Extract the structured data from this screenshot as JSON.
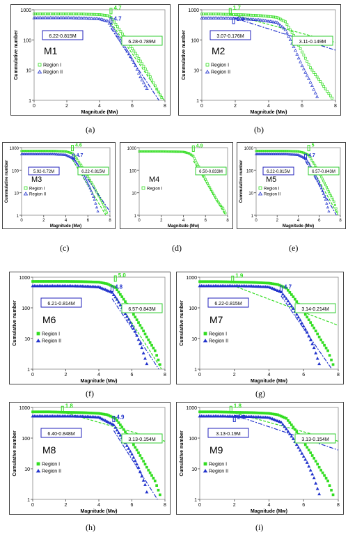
{
  "colors": {
    "region1": "#33dd22",
    "region2": "#2233cc",
    "boxBlue": "#2222bb",
    "boxGreen": "#33cc33"
  },
  "charts": [
    {
      "model": "M1",
      "caption": "(a)",
      "ylabel": "Cummulative number",
      "xlabel": "Magnitude (Mw)",
      "x_ticks": [
        "0",
        "2",
        "4",
        "6",
        "8"
      ],
      "y_ticks": [
        "1",
        "10",
        "100",
        "1000"
      ],
      "legend": [
        "Region I",
        "Region II"
      ],
      "box_blue": "6.22-0.815M",
      "box_green": "6.28-0.789M",
      "annot_green": "4.7",
      "annot_blue": "4.7",
      "mc_green": null,
      "mc_blue": null
    },
    {
      "model": "M2",
      "caption": "(b)",
      "ylabel": "Cummulative number",
      "xlabel": "Magnitude (Mw)",
      "x_ticks": [
        "0",
        "2",
        "4",
        "6",
        "8"
      ],
      "y_ticks": [
        "1",
        "10",
        "100",
        "1000"
      ],
      "legend": [
        "Region I",
        "Region II"
      ],
      "box_blue": "3.07-0.176M",
      "box_green": "3.11-0.149M",
      "annot_green": "1.7",
      "annot_blue": "1.9",
      "mc_green": null,
      "mc_blue": null
    },
    {
      "model": "M3",
      "caption": "(c)",
      "ylabel": "Cummulative number",
      "xlabel": "Magnitude (Mw)",
      "x_ticks": [
        "0",
        "2",
        "4",
        "6",
        "8"
      ],
      "y_ticks": [
        "1",
        "10",
        "100",
        "1000"
      ],
      "legend": [
        "Region I",
        "Region II"
      ],
      "box_blue": "5.92-0.72M",
      "box_green": "6.22-0.815M",
      "annot_green": "4.6",
      "annot_blue": "4.7",
      "mc_green": null,
      "mc_blue": null
    },
    {
      "model": "M4",
      "caption": "(d)",
      "ylabel": "",
      "xlabel": "Magnitude (Mw)",
      "x_ticks": [
        "0",
        "2",
        "4",
        "6",
        "8"
      ],
      "y_ticks": [
        "1",
        "10",
        "100",
        "1000"
      ],
      "legend": [
        "Region I"
      ],
      "box_blue": "",
      "box_green": "6.50-0.833M",
      "annot_green": "4.9",
      "annot_blue": "",
      "mc_green": null,
      "mc_blue": null
    },
    {
      "model": "M5",
      "caption": "(e)",
      "ylabel": "Cummulative number",
      "xlabel": "Magnitude (Mw)",
      "x_ticks": [
        "0",
        "2",
        "4",
        "6",
        "8"
      ],
      "y_ticks": [
        "1",
        "10",
        "100",
        "1000"
      ],
      "legend": [
        "Region I",
        "Region II"
      ],
      "box_blue": "6.22-0.815M",
      "box_green": "6.57-0.843M",
      "annot_green": "5",
      "annot_blue": "4.7",
      "mc_green": null,
      "mc_blue": null
    },
    {
      "model": "M6",
      "caption": "(f)",
      "ylabel": "Cumulative number",
      "xlabel": "Magnitude (Mw)",
      "x_ticks": [
        "0",
        "2",
        "4",
        "6",
        "8"
      ],
      "y_ticks": [
        "1",
        "10",
        "100",
        "1000"
      ],
      "legend": [
        "Region I",
        "Region II"
      ],
      "box_blue": "6.21-0.814M",
      "box_green": "6.57-0.843M",
      "annot_green": "5.0",
      "annot_blue": "4.8",
      "mc_green": null,
      "mc_blue": null
    },
    {
      "model": "M7",
      "caption": "(g)",
      "ylabel": "Cumulative number",
      "xlabel": "Magnitude (Mw)",
      "x_ticks": [
        "0",
        "2",
        "4",
        "6",
        "8"
      ],
      "y_ticks": [
        "1",
        "10",
        "100",
        "1000"
      ],
      "legend": [
        "Region I",
        "Region II"
      ],
      "box_blue": "6.22-0.815M",
      "box_green": "3.14-0.214M",
      "annot_green": "1.9",
      "annot_blue": "4.7",
      "mc_green": null,
      "mc_blue": null
    },
    {
      "model": "M8",
      "caption": "(h)",
      "ylabel": "Cumulative number",
      "xlabel": "Magnitude (Mw)",
      "x_ticks": [
        "0",
        "2",
        "4",
        "6",
        "8"
      ],
      "y_ticks": [
        "1",
        "10",
        "100",
        "1000"
      ],
      "legend": [
        "Region I",
        "Region II"
      ],
      "box_blue": "6.40-0.848M",
      "box_green": "3.13-0.154M",
      "annot_green": "1.8",
      "annot_blue": "4.9",
      "mc_green": null,
      "mc_blue": null
    },
    {
      "model": "M9",
      "caption": "(i)",
      "ylabel": "Cumulative number",
      "xlabel": "Magnitude (Mw)",
      "x_ticks": [
        "0",
        "2",
        "4",
        "6",
        "8"
      ],
      "y_ticks": [
        "1",
        "10",
        "100",
        "1000"
      ],
      "legend": [
        "Region I",
        "Region II"
      ],
      "box_blue": "3.13-0.19M",
      "box_green": "3.13-0.154M",
      "annot_green": "1.8",
      "annot_blue": "2.0",
      "mc_green": null,
      "mc_blue": null
    }
  ],
  "chart_data": [
    {
      "type": "scatter",
      "panel": "M1",
      "xlabel": "Magnitude (Mw)",
      "ylabel": "Cummulative number",
      "xlim": [
        0,
        8
      ],
      "ylim": [
        1,
        1000
      ],
      "ylog": true,
      "series": [
        {
          "name": "Region I",
          "fit": "6.28-0.789M",
          "mc": 4.7,
          "marker": "square-open",
          "x": [
            0,
            1,
            2,
            3,
            4,
            4.5,
            4.7,
            5.0,
            5.3,
            5.6,
            5.9,
            6.2,
            6.5,
            6.8,
            7.1,
            7.4,
            7.7,
            7.9
          ],
          "y": [
            730,
            730,
            730,
            720,
            690,
            640,
            560,
            330,
            190,
            110,
            60,
            36,
            20,
            11,
            6,
            3,
            1.5,
            1
          ]
        },
        {
          "name": "Region II",
          "fit": "6.22-0.815M",
          "mc": 4.7,
          "marker": "triangle-open",
          "x": [
            0,
            1,
            2,
            3,
            4,
            4.5,
            4.7,
            5.0,
            5.3,
            5.6,
            5.9,
            6.2,
            6.5,
            6.8,
            7.0
          ],
          "y": [
            540,
            540,
            540,
            530,
            500,
            420,
            300,
            170,
            95,
            52,
            28,
            14,
            6,
            3,
            2
          ]
        }
      ]
    },
    {
      "type": "scatter",
      "panel": "M2",
      "xlabel": "Magnitude (Mw)",
      "ylabel": "Cummulative number",
      "xlim": [
        0,
        8
      ],
      "ylim": [
        1,
        1000
      ],
      "ylog": true,
      "series": [
        {
          "name": "Region I",
          "fit": "3.11-0.149M",
          "mc": 1.7,
          "marker": "square-open",
          "x": [
            0,
            1,
            1.7,
            2.5,
            3.5,
            4.5,
            5.0,
            5.5,
            6.0,
            6.5,
            7.0,
            7.5,
            7.9
          ],
          "y": [
            720,
            720,
            700,
            680,
            640,
            560,
            400,
            140,
            40,
            12,
            5,
            2,
            1
          ]
        },
        {
          "name": "Region II",
          "fit": "3.07-0.176M",
          "mc": 1.9,
          "marker": "triangle-open",
          "x": [
            0,
            1,
            1.9,
            2.5,
            3.5,
            4.5,
            5.0,
            5.5,
            6.0,
            6.5,
            7.0
          ],
          "y": [
            530,
            530,
            520,
            500,
            460,
            380,
            220,
            60,
            14,
            4,
            1
          ]
        }
      ]
    },
    {
      "type": "scatter",
      "panel": "M3",
      "xlabel": "Magnitude (Mw)",
      "ylabel": "Cummulative number",
      "xlim": [
        0,
        8
      ],
      "ylim": [
        1,
        1000
      ],
      "ylog": true,
      "series": [
        {
          "name": "Region I",
          "fit": "6.22-0.815M",
          "mc": 4.6,
          "marker": "square-open",
          "x": [
            0,
            1,
            2,
            3,
            4,
            4.6,
            5.0,
            5.4,
            5.8,
            6.2,
            6.6,
            7.0,
            7.4,
            7.8
          ],
          "y": [
            720,
            720,
            720,
            710,
            680,
            560,
            320,
            160,
            75,
            36,
            16,
            7,
            3,
            1
          ]
        },
        {
          "name": "Region II",
          "fit": "5.92-0.72M",
          "mc": 4.7,
          "marker": "triangle-open",
          "x": [
            0,
            1,
            2,
            3,
            4,
            4.7,
            5.0,
            5.4,
            5.8,
            6.2,
            6.6,
            7.0
          ],
          "y": [
            520,
            520,
            520,
            510,
            480,
            330,
            200,
            95,
            40,
            16,
            5,
            1
          ]
        }
      ]
    },
    {
      "type": "scatter",
      "panel": "M4",
      "xlabel": "Magnitude (Mw)",
      "ylabel": "",
      "xlim": [
        0,
        8
      ],
      "ylim": [
        1,
        1000
      ],
      "ylog": true,
      "series": [
        {
          "name": "Region I",
          "fit": "6.50-0.833M",
          "mc": 4.9,
          "marker": "square-open",
          "x": [
            0,
            1,
            2,
            3,
            4,
            4.5,
            4.9,
            5.2,
            5.5,
            5.8,
            6.1,
            6.4,
            6.7,
            7.0,
            7.3,
            7.6,
            7.9
          ],
          "y": [
            680,
            680,
            680,
            670,
            650,
            560,
            420,
            210,
            120,
            62,
            32,
            17,
            9,
            5,
            3,
            2,
            1
          ]
        }
      ]
    },
    {
      "type": "scatter",
      "panel": "M5",
      "xlabel": "Magnitude (Mw)",
      "ylabel": "Cummulative number",
      "xlim": [
        0,
        8
      ],
      "ylim": [
        1,
        1000
      ],
      "ylog": true,
      "series": [
        {
          "name": "Region I",
          "fit": "6.57-0.843M",
          "mc": 5.0,
          "marker": "square-open",
          "x": [
            0,
            1,
            2,
            3,
            4,
            4.5,
            5.0,
            5.4,
            5.8,
            6.2,
            6.6,
            7.0,
            7.4,
            7.8
          ],
          "y": [
            720,
            720,
            720,
            710,
            680,
            600,
            460,
            230,
            110,
            50,
            22,
            9,
            4,
            1
          ]
        },
        {
          "name": "Region II",
          "fit": "6.22-0.815M",
          "mc": 4.7,
          "marker": "triangle-open",
          "x": [
            0,
            1,
            2,
            3,
            4,
            4.7,
            5.0,
            5.4,
            5.8,
            6.2,
            6.6,
            7.0
          ],
          "y": [
            520,
            520,
            520,
            510,
            480,
            330,
            200,
            95,
            40,
            16,
            5,
            1
          ]
        }
      ]
    },
    {
      "type": "scatter",
      "panel": "M6",
      "xlabel": "Magnitude (Mw)",
      "ylabel": "Cumulative number",
      "xlim": [
        0,
        8
      ],
      "ylim": [
        1,
        1000
      ],
      "ylog": true,
      "series": [
        {
          "name": "Region I",
          "fit": "6.57-0.843M",
          "mc": 5.0,
          "marker": "square-filled",
          "x": [
            0,
            1,
            2,
            3,
            4,
            4.5,
            5.0,
            5.4,
            5.8,
            6.2,
            6.6,
            7.0,
            7.4,
            7.8
          ],
          "y": [
            730,
            730,
            730,
            720,
            690,
            610,
            460,
            230,
            110,
            50,
            22,
            9,
            4,
            1
          ]
        },
        {
          "name": "Region II",
          "fit": "6.21-0.814M",
          "mc": 4.8,
          "marker": "triangle-filled",
          "x": [
            0,
            1,
            2,
            3,
            4,
            4.8,
            5.1,
            5.4,
            5.8,
            6.2,
            6.6,
            7.0
          ],
          "y": [
            520,
            520,
            520,
            510,
            480,
            320,
            190,
            100,
            42,
            17,
            5,
            1
          ]
        }
      ]
    },
    {
      "type": "scatter",
      "panel": "M7",
      "xlabel": "Magnitude (Mw)",
      "ylabel": "Cumulative number",
      "xlim": [
        0,
        8
      ],
      "ylim": [
        1,
        1000
      ],
      "ylog": true,
      "series": [
        {
          "name": "Region I",
          "fit": "3.14-0.214M",
          "mc": 1.9,
          "marker": "square-filled",
          "x": [
            0,
            1,
            1.9,
            3,
            4,
            4.5,
            5.0,
            5.4,
            5.8,
            6.2,
            6.6,
            7.0,
            7.4,
            7.8
          ],
          "y": [
            720,
            720,
            700,
            680,
            640,
            580,
            440,
            230,
            110,
            50,
            22,
            9,
            4,
            1
          ]
        },
        {
          "name": "Region II",
          "fit": "6.22-0.815M",
          "mc": 4.7,
          "marker": "triangle-filled",
          "x": [
            0,
            1,
            2,
            3,
            4,
            4.7,
            5.0,
            5.4,
            5.8,
            6.2,
            6.6,
            7.0
          ],
          "y": [
            520,
            520,
            520,
            510,
            480,
            330,
            200,
            95,
            40,
            16,
            5,
            1
          ]
        }
      ]
    },
    {
      "type": "scatter",
      "panel": "M8",
      "xlabel": "Magnitude (Mw)",
      "ylabel": "Cumulative number",
      "xlim": [
        0,
        8
      ],
      "ylim": [
        1,
        1000
      ],
      "ylog": true,
      "series": [
        {
          "name": "Region I",
          "fit": "3.13-0.154M",
          "mc": 1.8,
          "marker": "square-filled",
          "x": [
            0,
            1,
            1.8,
            3,
            4,
            4.5,
            5.0,
            5.4,
            5.8,
            6.2,
            6.6,
            7.0,
            7.4,
            7.8
          ],
          "y": [
            720,
            720,
            700,
            680,
            640,
            580,
            440,
            230,
            110,
            50,
            22,
            9,
            4,
            1
          ]
        },
        {
          "name": "Region II",
          "fit": "6.40-0.848M",
          "mc": 4.9,
          "marker": "triangle-filled",
          "x": [
            0,
            1,
            2,
            3,
            4,
            4.9,
            5.2,
            5.6,
            6.0,
            6.4,
            6.8,
            7.0
          ],
          "y": [
            520,
            520,
            520,
            510,
            480,
            270,
            150,
            70,
            30,
            11,
            3,
            1
          ]
        }
      ]
    },
    {
      "type": "scatter",
      "panel": "M9",
      "xlabel": "Magnitude (Mw)",
      "ylabel": "Cumulative number",
      "xlim": [
        0,
        8
      ],
      "ylim": [
        1,
        1000
      ],
      "ylog": true,
      "series": [
        {
          "name": "Region I",
          "fit": "3.13-0.154M",
          "mc": 1.8,
          "marker": "square-filled",
          "x": [
            0,
            1,
            1.8,
            3,
            4,
            4.5,
            5.0,
            5.4,
            5.8,
            6.2,
            6.6,
            7.0,
            7.4,
            7.8
          ],
          "y": [
            720,
            720,
            700,
            680,
            640,
            580,
            440,
            230,
            110,
            50,
            22,
            9,
            4,
            1
          ]
        },
        {
          "name": "Region II",
          "fit": "3.13-0.19M",
          "mc": 2.0,
          "marker": "triangle-filled",
          "x": [
            0,
            1,
            2.0,
            3,
            4,
            4.7,
            5.0,
            5.4,
            5.8,
            6.2,
            6.6,
            7.0
          ],
          "y": [
            520,
            520,
            510,
            500,
            470,
            330,
            200,
            95,
            40,
            16,
            5,
            1
          ]
        }
      ]
    }
  ]
}
